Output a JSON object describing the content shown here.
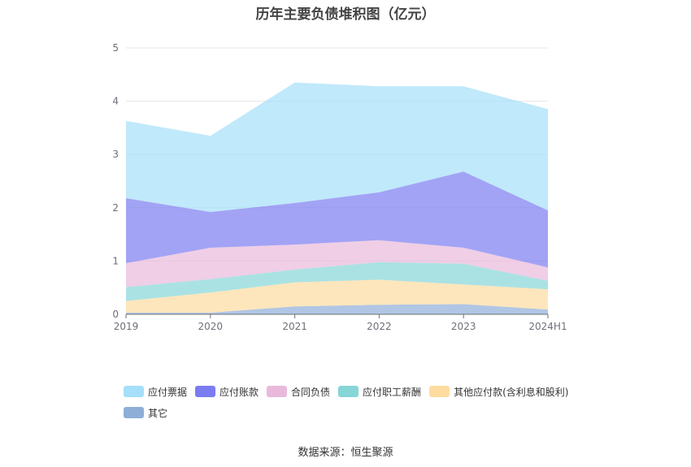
{
  "chart_data": {
    "type": "area",
    "title": "历年主要负债堆积图（亿元）",
    "categories": [
      "2019",
      "2020",
      "2021",
      "2022",
      "2023",
      "2024H1"
    ],
    "y_ticks": [
      "0",
      "1",
      "2",
      "3",
      "4",
      "5"
    ],
    "ylim": [
      0,
      5
    ],
    "stacked": true,
    "grid": true,
    "legend_position": "bottom",
    "series": [
      {
        "name": "其它",
        "color": "#8eaed8",
        "values": [
          0.03,
          0.03,
          0.15,
          0.18,
          0.19,
          0.09
        ]
      },
      {
        "name": "其他应付款(含利息和股利)",
        "color": "#fedc9f",
        "values": [
          0.22,
          0.38,
          0.45,
          0.47,
          0.37,
          0.38
        ]
      },
      {
        "name": "应付职工薪酬",
        "color": "#86d5d7",
        "values": [
          0.26,
          0.25,
          0.24,
          0.33,
          0.39,
          0.16
        ]
      },
      {
        "name": "合同负债",
        "color": "#e8b9db",
        "values": [
          0.45,
          0.59,
          0.47,
          0.41,
          0.3,
          0.25
        ]
      },
      {
        "name": "应付账款",
        "color": "#7b7cf1",
        "values": [
          1.22,
          0.67,
          0.78,
          0.9,
          1.43,
          1.07
        ]
      },
      {
        "name": "应付票据",
        "color": "#a5dff9",
        "values": [
          1.45,
          1.43,
          2.26,
          1.99,
          1.6,
          1.9
        ]
      }
    ],
    "legend_order": [
      "应付票据",
      "应付账款",
      "合同负债",
      "应付职工薪酬",
      "其他应付款(含利息和股利)",
      "其它"
    ]
  },
  "source": "数据来源：恒生聚源"
}
